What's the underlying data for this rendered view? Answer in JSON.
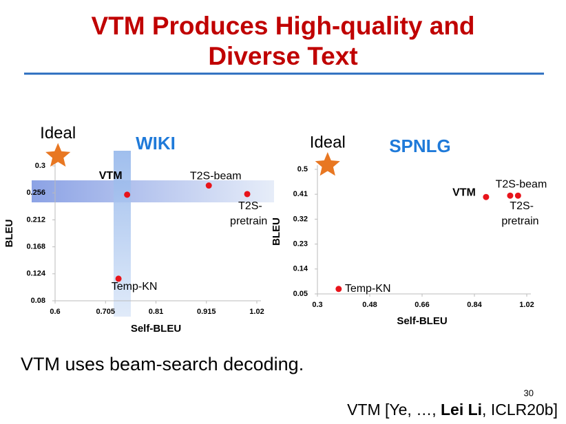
{
  "title": [
    "VTM Produces High-quality and",
    "Diverse Text"
  ],
  "chart_data": [
    {
      "type": "scatter",
      "title": "WIKI",
      "x_label": "Self-BLEU",
      "y_label": "BLEU",
      "xlim": [
        0.6,
        1.02
      ],
      "xticks": [
        0.6,
        0.705,
        0.81,
        0.915,
        1.02
      ],
      "ylim": [
        0.08,
        0.3
      ],
      "yticks": [
        0.08,
        0.124,
        0.168,
        0.212,
        0.256,
        0.3
      ],
      "color": "#e8141b",
      "point_labels": [
        "VTM",
        "T2S-beam",
        "T2S-pretrain",
        "Temp-KN"
      ],
      "x": [
        0.75,
        0.92,
        1.0,
        0.732
      ],
      "values": [
        0.253,
        0.268,
        0.254,
        0.116
      ],
      "ideal": {
        "label": "Ideal",
        "x": 0.606,
        "y": 0.316
      }
    },
    {
      "type": "scatter",
      "title": "SPNLG",
      "x_label": "Self-BLEU",
      "y_label": "BLEU",
      "xlim": [
        0.3,
        1.02
      ],
      "xticks": [
        0.3,
        0.48,
        0.66,
        0.84,
        1.02
      ],
      "ylim": [
        0.05,
        0.5
      ],
      "yticks": [
        0.05,
        0.14,
        0.23,
        0.32,
        0.41,
        0.5
      ],
      "color": "#e8141b",
      "point_labels": [
        "VTM",
        "T2S-beam",
        "T2S-pretrain",
        "Temp-KN"
      ],
      "x": [
        0.88,
        0.963,
        0.99,
        0.373
      ],
      "values": [
        0.4,
        0.405,
        0.405,
        0.068
      ],
      "ideal": {
        "label": "Ideal",
        "x": 0.335,
        "y": 0.515
      }
    }
  ],
  "caption": "VTM uses beam-search decoding.",
  "page_number": 30,
  "citation": [
    "VTM [Ye, …, ",
    "Lei Li",
    ", ICLR20b]"
  ]
}
